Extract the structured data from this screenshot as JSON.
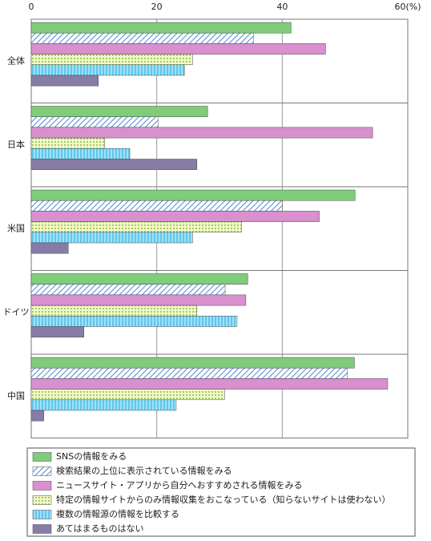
{
  "chart_data": {
    "type": "bar",
    "orientation": "horizontal",
    "categories": [
      "全体",
      "日本",
      "米国",
      "ドイツ",
      "中国"
    ],
    "series": [
      {
        "name": "SNSの情報をみる",
        "color": "#7fcc7a",
        "pattern": "solid",
        "values": [
          41.4,
          28.1,
          51.6,
          34.5,
          51.5
        ]
      },
      {
        "name": "検索結果の上位に表示されている情報をみる",
        "color": "#4f86d4",
        "pattern": "diagonal",
        "values": [
          35.4,
          20.2,
          40.0,
          30.9,
          50.4
        ]
      },
      {
        "name": "ニュースサイト・アプリから自分へおすすめされる情報をみる",
        "color": "#d890cf",
        "pattern": "solid",
        "values": [
          46.9,
          54.4,
          45.9,
          34.2,
          56.8
        ]
      },
      {
        "name": "特定の情報サイトからのみ情報収集をおこなっている（知らないサイトは使わない）",
        "color": "#9ccf5a",
        "pattern": "grid",
        "values": [
          25.7,
          11.7,
          33.5,
          26.4,
          30.8
        ]
      },
      {
        "name": "複数の情報源の情報を比較する",
        "color": "#5cc8ee",
        "pattern": "vertical",
        "values": [
          24.4,
          15.7,
          25.7,
          32.8,
          23.1
        ]
      },
      {
        "name": "あてはまるものはない",
        "color": "#877ca6",
        "pattern": "solid",
        "values": [
          10.7,
          26.4,
          5.9,
          8.4,
          2.0
        ]
      }
    ],
    "xlim": [
      0,
      60
    ],
    "xticks": [
      0,
      20,
      40,
      {
        "value": 60,
        "label": "60(%)"
      }
    ],
    "grid": true
  }
}
